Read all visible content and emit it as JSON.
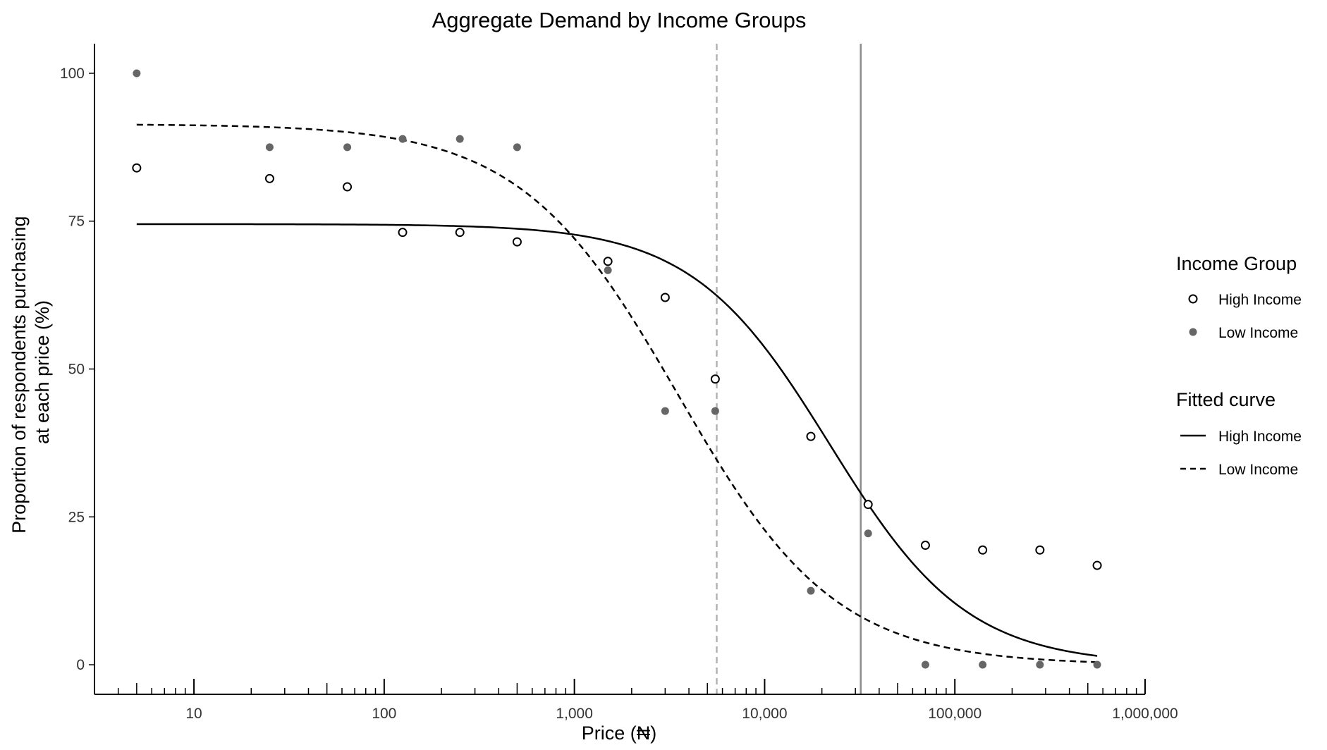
{
  "chart_data": {
    "type": "scatter",
    "title": "Aggregate Demand by Income Groups",
    "xlabel": "Price (₦)",
    "ylabel_lines": [
      "Proportion of respondents purchasing",
      "at each price (%)"
    ],
    "x_scale": "log10",
    "xlim": [
      3,
      1000000
    ],
    "ylim": [
      -5,
      105
    ],
    "x_ticks": [
      10,
      100,
      1000,
      10000,
      100000,
      1000000
    ],
    "x_tick_labels": [
      "10",
      "100",
      "1,000",
      "10,000",
      "100,000",
      "1,000,000"
    ],
    "y_ticks": [
      0,
      25,
      50,
      75,
      100
    ],
    "y_tick_labels": [
      "0",
      "25",
      "50",
      "75",
      "100"
    ],
    "grid": false,
    "legend_position": "right",
    "colors": {
      "high_point": "#000000",
      "low_point": "#666666",
      "curve": "#000000",
      "vline_solid": "#8c8c8c",
      "vline_dashed": "#b3b3b3"
    },
    "reference_lines": [
      {
        "x": 5600,
        "style": "dashed"
      },
      {
        "x": 32000,
        "style": "solid"
      }
    ],
    "series": [
      {
        "name": "High Income",
        "marker": "open-circle",
        "points": [
          [
            5,
            84
          ],
          [
            25,
            82.2
          ],
          [
            64,
            80.8
          ],
          [
            125,
            73.1
          ],
          [
            250,
            73.1
          ],
          [
            500,
            71.5
          ],
          [
            1500,
            68.2
          ],
          [
            3000,
            62.1
          ],
          [
            5500,
            48.3
          ],
          [
            17500,
            38.6
          ],
          [
            35000,
            27.1
          ],
          [
            70000,
            20.2
          ],
          [
            140000,
            19.4
          ],
          [
            280000,
            19.4
          ],
          [
            560000,
            16.8
          ]
        ]
      },
      {
        "name": "Low Income",
        "marker": "filled-circle",
        "points": [
          [
            5,
            100
          ],
          [
            25,
            87.5
          ],
          [
            64,
            87.5
          ],
          [
            125,
            88.9
          ],
          [
            250,
            88.9
          ],
          [
            500,
            87.5
          ],
          [
            1500,
            66.7
          ],
          [
            3000,
            42.9
          ],
          [
            5500,
            42.9
          ],
          [
            17500,
            12.5
          ],
          [
            35000,
            22.2
          ],
          [
            70000,
            0
          ],
          [
            140000,
            0
          ],
          [
            280000,
            0
          ],
          [
            560000,
            0
          ]
        ]
      }
    ],
    "fitted_curves": [
      {
        "name": "High Income",
        "style": "solid",
        "top": 74.5,
        "ec50": 22000,
        "slope": 1.2
      },
      {
        "name": "Low Income",
        "style": "dashed",
        "top": 91.4,
        "ec50": 3500,
        "slope": 1.05
      }
    ],
    "legend": [
      {
        "title": "Income Group",
        "items": [
          {
            "label": "High Income",
            "kind": "open-circle"
          },
          {
            "label": "Low Income",
            "kind": "filled-circle"
          }
        ]
      },
      {
        "title": "Fitted curve",
        "items": [
          {
            "label": "High Income",
            "kind": "solid-line"
          },
          {
            "label": "Low Income",
            "kind": "dashed-line"
          }
        ]
      }
    ]
  }
}
